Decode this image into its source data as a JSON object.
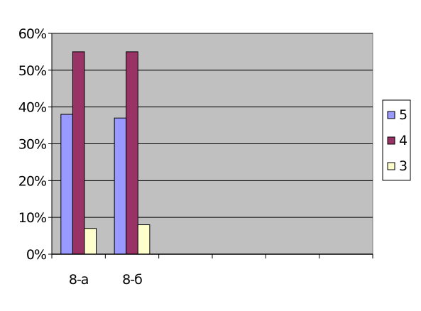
{
  "chart_data": {
    "type": "bar",
    "categories": [
      "8-а",
      "8-б",
      "",
      "",
      "",
      ""
    ],
    "series": [
      {
        "name": "5",
        "values": [
          38,
          37,
          null,
          null,
          null,
          null
        ],
        "color": "#9999ff"
      },
      {
        "name": "4",
        "values": [
          55,
          55,
          null,
          null,
          null,
          null
        ],
        "color": "#993366"
      },
      {
        "name": "3",
        "values": [
          7,
          8,
          null,
          null,
          null,
          null
        ],
        "color": "#ffffcc"
      }
    ],
    "ylim": [
      0,
      60
    ],
    "yticks": [
      0,
      10,
      20,
      30,
      40,
      50,
      60
    ],
    "ytick_labels": [
      "0%",
      "10%",
      "20%",
      "30%",
      "40%",
      "50%",
      "60%"
    ],
    "plot_background": "#c0c0c0",
    "grid": true,
    "legend": "right",
    "title": "",
    "xlabel": "",
    "ylabel": ""
  }
}
